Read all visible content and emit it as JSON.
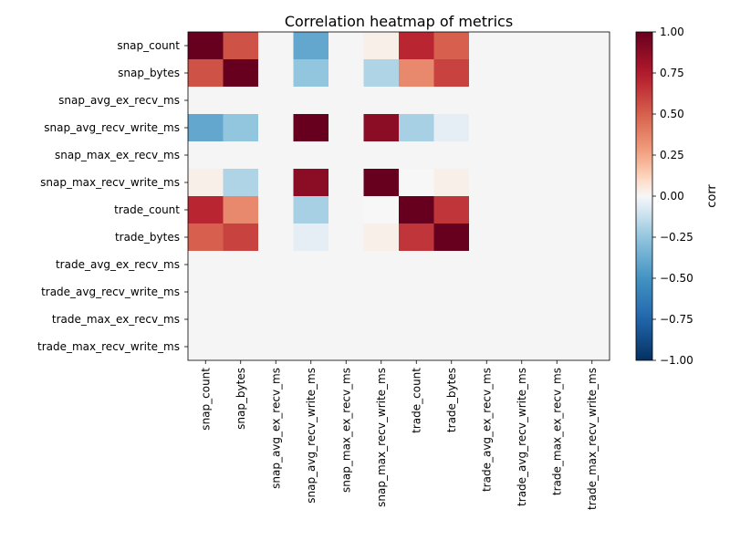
{
  "chart_data": {
    "type": "heatmap",
    "title": "Correlation heatmap of metrics",
    "xlabel": "",
    "ylabel": "",
    "labels": [
      "snap_count",
      "snap_bytes",
      "snap_avg_ex_recv_ms",
      "snap_avg_recv_write_ms",
      "snap_max_ex_recv_ms",
      "snap_max_recv_write_ms",
      "trade_count",
      "trade_bytes",
      "trade_avg_ex_recv_ms",
      "trade_avg_recv_write_ms",
      "trade_max_ex_recv_ms",
      "trade_max_recv_write_ms"
    ],
    "matrix": [
      [
        1.0,
        0.55,
        null,
        -0.4,
        null,
        0.03,
        0.7,
        0.5,
        null,
        null,
        null,
        null
      ],
      [
        0.55,
        1.0,
        null,
        -0.25,
        null,
        -0.18,
        0.35,
        0.6,
        null,
        null,
        null,
        null
      ],
      [
        null,
        null,
        null,
        null,
        null,
        null,
        null,
        null,
        null,
        null,
        null,
        null
      ],
      [
        -0.4,
        -0.25,
        null,
        1.0,
        null,
        0.88,
        -0.2,
        -0.05,
        null,
        null,
        null,
        null
      ],
      [
        null,
        null,
        null,
        null,
        null,
        null,
        null,
        null,
        null,
        null,
        null,
        null
      ],
      [
        0.03,
        -0.18,
        null,
        0.88,
        null,
        1.0,
        0.0,
        0.03,
        null,
        null,
        null,
        null
      ],
      [
        0.7,
        0.35,
        null,
        -0.2,
        null,
        0.0,
        1.0,
        0.65,
        null,
        null,
        null,
        null
      ],
      [
        0.5,
        0.6,
        null,
        -0.05,
        null,
        0.03,
        0.65,
        1.0,
        null,
        null,
        null,
        null
      ],
      [
        null,
        null,
        null,
        null,
        null,
        null,
        null,
        null,
        null,
        null,
        null,
        null
      ],
      [
        null,
        null,
        null,
        null,
        null,
        null,
        null,
        null,
        null,
        null,
        null,
        null
      ],
      [
        null,
        null,
        null,
        null,
        null,
        null,
        null,
        null,
        null,
        null,
        null,
        null
      ],
      [
        null,
        null,
        null,
        null,
        null,
        null,
        null,
        null,
        null,
        null,
        null,
        null
      ]
    ],
    "missing_color": "#f5f5f5",
    "colormap": "RdBu_r",
    "clim": [
      -1,
      1
    ],
    "colorbar": {
      "label": "corr",
      "ticks": [
        1.0,
        0.75,
        0.5,
        0.25,
        0.0,
        -0.25,
        -0.5,
        -0.75,
        -1.0
      ],
      "tick_labels": [
        "1.00",
        "0.75",
        "0.50",
        "0.25",
        "0.00",
        "−0.25",
        "−0.50",
        "−0.75",
        "−1.00"
      ]
    }
  }
}
